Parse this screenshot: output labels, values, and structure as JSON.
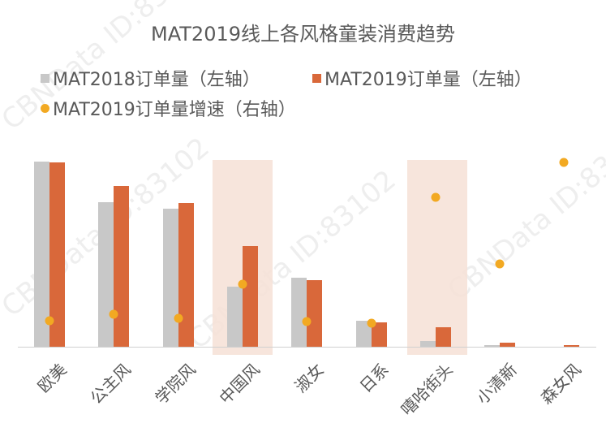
{
  "chart_data": {
    "type": "bar",
    "title": "MAT2019线上各风格童装消费趋势",
    "categories": [
      "欧美",
      "公主风",
      "学院风",
      "中国风",
      "淑女",
      "日系",
      "嘻哈街头",
      "小清新",
      "森女风"
    ],
    "series": [
      {
        "name": "MAT2018订单量（左轴）",
        "type": "bar",
        "axis": "left",
        "color": "#c8c8c8",
        "values": [
          228,
          178,
          170,
          74,
          85,
          32,
          7,
          2,
          0
        ]
      },
      {
        "name": "MAT2019订单量（左轴）",
        "type": "bar",
        "axis": "left",
        "color": "#d9683a",
        "values": [
          227,
          198,
          177,
          124,
          82,
          30,
          24,
          5,
          2
        ]
      },
      {
        "name": "MAT2019订单量增速（右轴）",
        "type": "scatter",
        "axis": "right",
        "color": "#f2a922",
        "values": [
          32,
          40,
          35,
          77,
          31,
          29,
          184,
          102,
          227
        ]
      }
    ],
    "highlighted_categories": [
      "中国风",
      "嘻哈街头"
    ],
    "xlabel": "",
    "ylabel": "",
    "notes": "No axis ticks shown; values are relative pixel heights estimated from the image.",
    "grid": false,
    "legend_position": "top"
  },
  "title": "MAT2019线上各风格童装消费趋势",
  "legend": {
    "s2018": "MAT2018订单量（左轴）",
    "s2019": "MAT2019订单量（左轴）",
    "growth": "MAT2019订单量增速（右轴）"
  },
  "colors": {
    "gray": "#c8c8c8",
    "orange": "#d9683a",
    "dot": "#f2a922",
    "highlight": "#f6e0d6"
  },
  "watermark": "CBNData ID:83102"
}
